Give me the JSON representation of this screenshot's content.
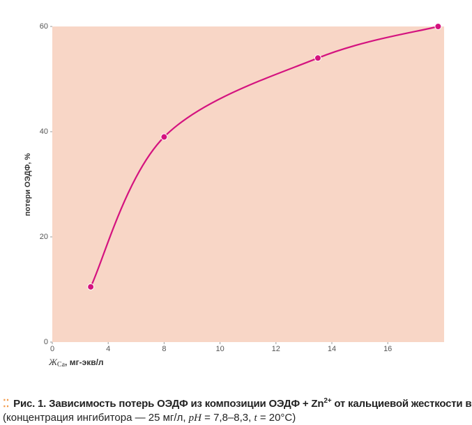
{
  "chart_data": {
    "type": "line",
    "y_label": "потери ОЭДФ, %",
    "x_label": {
      "symbol": "Ж",
      "subscript": "Ca",
      "rest": ", мг-экв/л"
    },
    "x": [
      2.75,
      8,
      13.5,
      17.8
    ],
    "series": [
      {
        "color": "#d4137f",
        "values": [
          10.5,
          39,
          54,
          60
        ]
      }
    ],
    "xlim": [
      0,
      18
    ],
    "xticks": [
      0,
      4,
      8,
      10,
      12,
      14,
      16
    ],
    "ylim": [
      0,
      60
    ],
    "yticks": [
      0,
      20,
      40,
      60
    ],
    "plot_background": "#f8d6c6",
    "grid": false,
    "smooth": true
  },
  "caption": {
    "line1": [
      "Рис. 1. Зависимость потерь ОЭДФ из композиции ОЭДФ + Zn",
      "2+",
      " от кальциевой жесткости воды"
    ],
    "line2": [
      "(концентрация ингибитора — 25 мг/л, ",
      "pH",
      " = 7,8–8,3, ",
      "t",
      " = 20°C)"
    ]
  }
}
